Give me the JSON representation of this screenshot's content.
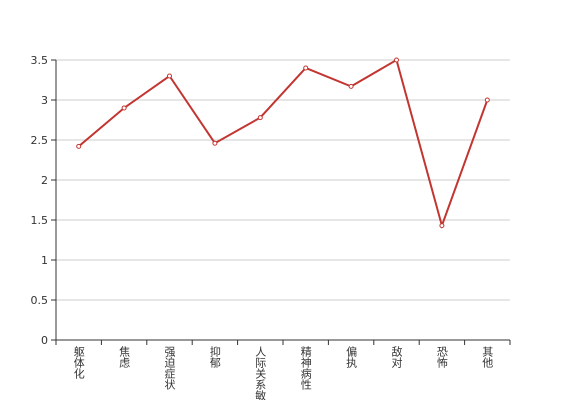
{
  "chart_data": {
    "type": "line",
    "categories": [
      "躯体化",
      "焦虑",
      "强迫症状",
      "抑郁",
      "人际关系敏感",
      "精神病性",
      "偏执",
      "敌对",
      "恐怖",
      "其他"
    ],
    "series": [
      {
        "color": "#c23531",
        "values": [
          2.42,
          2.9,
          3.3,
          2.46,
          2.78,
          3.4,
          3.17,
          3.5,
          1.43,
          3.0
        ]
      }
    ],
    "ylim": [
      0,
      3.5
    ],
    "yticks": [
      0,
      0.5,
      1,
      1.5,
      2,
      2.5,
      3,
      3.5
    ],
    "grid": true
  }
}
